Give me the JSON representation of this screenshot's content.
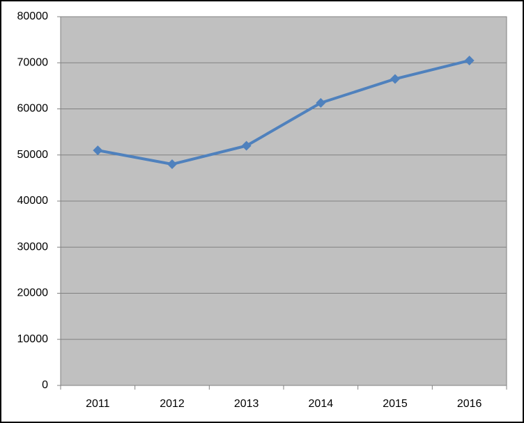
{
  "chart_data": {
    "type": "line",
    "categories": [
      "2011",
      "2012",
      "2013",
      "2014",
      "2015",
      "2016"
    ],
    "values": [
      51000,
      48000,
      52000,
      61300,
      66500,
      70500
    ],
    "color": "#4f81bd",
    "ylim": [
      0,
      80000
    ],
    "yticks": [
      0,
      10000,
      20000,
      30000,
      40000,
      50000,
      60000,
      70000,
      80000
    ],
    "grid": true
  }
}
